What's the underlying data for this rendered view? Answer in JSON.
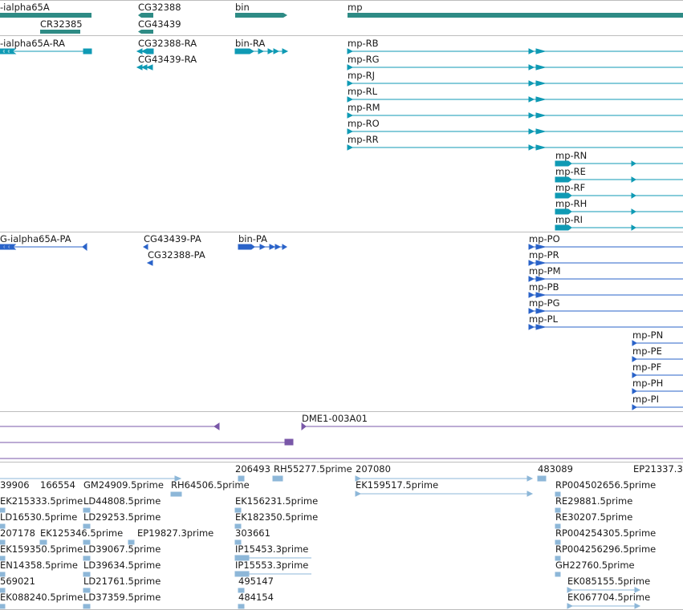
{
  "colors": {
    "gene": "#2e8b85",
    "transcript": "#0f9ab4",
    "protein": "#2a63c9",
    "clone": "#7957a8",
    "est": "#8db7d8",
    "separator": "#bdbdbd"
  },
  "tracks": {
    "genes": {
      "labels": [
        "-ialpha65A",
        "CR32385",
        "CG32388",
        "CG43439",
        "bin",
        "mp"
      ]
    },
    "transcripts": {
      "labels": [
        "-ialpha65A-RA",
        "CG32388-RA",
        "CG43439-RA",
        "bin-RA",
        "mp-RB",
        "mp-RG",
        "mp-RJ",
        "mp-RL",
        "mp-RM",
        "mp-RO",
        "mp-RR",
        "mp-RN",
        "mp-RE",
        "mp-RF",
        "mp-RH",
        "mp-RI"
      ]
    },
    "proteins": {
      "labels": [
        "G-ialpha65A-PA",
        "CG43439-PA",
        "CG32388-PA",
        "bin-PA",
        "mp-PO",
        "mp-PR",
        "mp-PM",
        "mp-PB",
        "mp-PG",
        "mp-PL",
        "mp-PN",
        "mp-PE",
        "mp-PF",
        "mp-PH",
        "mp-PI"
      ]
    },
    "clones": {
      "labels": [
        "DME1-003A01"
      ]
    },
    "ests": {
      "labels": [
        "39906",
        "166554",
        "GM24909.5prime",
        "RH64506.5prime",
        "EK215333.5prime",
        "LD44808.5prime",
        "LD16530.5prime",
        "LD29253.5prime",
        "207178",
        "EK125346.5prime",
        "EP19827.3prime",
        "EK159350.5prime",
        "LD39067.5prime",
        "EN14358.5prime",
        "LD39634.5prime",
        "569021",
        "LD21761.5prime",
        "EK088240.5prime",
        "LD37359.5prime",
        "206493",
        "RH55277.5prime",
        "207080",
        "EK159517.5prime",
        "EK156231.5prime",
        "EK182350.5prime",
        "303661",
        "IP15453.3prime",
        "IP15553.3prime",
        "495147",
        "484154",
        "483089",
        "EP21337.3",
        "RP004502656.5prime",
        "RE29881.5prime",
        "RE30207.5prime",
        "RP004254305.5prime",
        "RP004256296.5prime",
        "GH22760.5prime",
        "EK085155.5prime",
        "EK067704.5prime"
      ]
    }
  }
}
